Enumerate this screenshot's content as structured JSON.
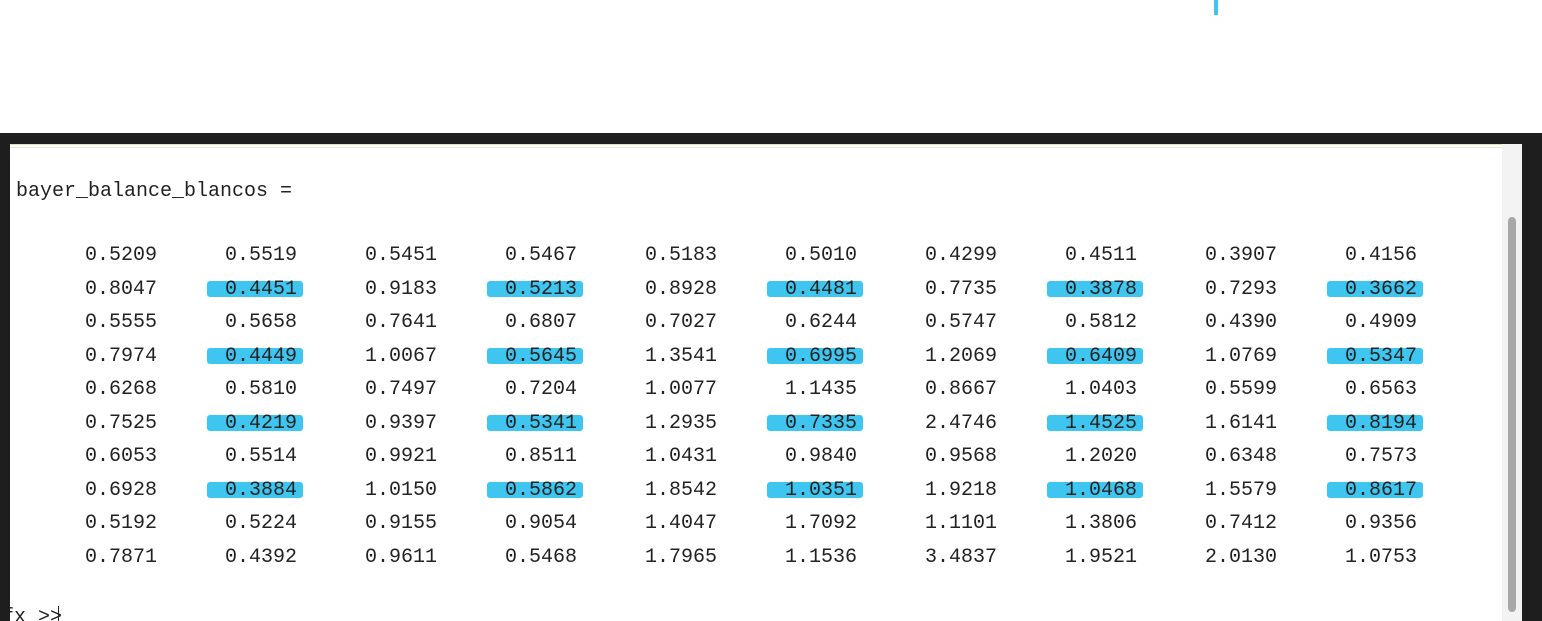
{
  "console": {
    "variable_line": "bayer_balance_blancos =",
    "prompt": "fx >>"
  },
  "matrix": {
    "rows": [
      [
        "0.5209",
        "0.5519",
        "0.5451",
        "0.5467",
        "0.5183",
        "0.5010",
        "0.4299",
        "0.4511",
        "0.3907",
        "0.4156"
      ],
      [
        "0.8047",
        "0.4451",
        "0.9183",
        "0.5213",
        "0.8928",
        "0.4481",
        "0.7735",
        "0.3878",
        "0.7293",
        "0.3662"
      ],
      [
        "0.5555",
        "0.5658",
        "0.7641",
        "0.6807",
        "0.7027",
        "0.6244",
        "0.5747",
        "0.5812",
        "0.4390",
        "0.4909"
      ],
      [
        "0.7974",
        "0.4449",
        "1.0067",
        "0.5645",
        "1.3541",
        "0.6995",
        "1.2069",
        "0.6409",
        "1.0769",
        "0.5347"
      ],
      [
        "0.6268",
        "0.5810",
        "0.7497",
        "0.7204",
        "1.0077",
        "1.1435",
        "0.8667",
        "1.0403",
        "0.5599",
        "0.6563"
      ],
      [
        "0.7525",
        "0.4219",
        "0.9397",
        "0.5341",
        "1.2935",
        "0.7335",
        "2.4746",
        "1.4525",
        "1.6141",
        "0.8194"
      ],
      [
        "0.6053",
        "0.5514",
        "0.9921",
        "0.8511",
        "1.0431",
        "0.9840",
        "0.9568",
        "1.2020",
        "0.6348",
        "0.7573"
      ],
      [
        "0.6928",
        "0.3884",
        "1.0150",
        "0.5862",
        "1.8542",
        "1.0351",
        "1.9218",
        "1.0468",
        "1.5579",
        "0.8617"
      ],
      [
        "0.5192",
        "0.5224",
        "0.9155",
        "0.9054",
        "1.4047",
        "1.7092",
        "1.1101",
        "1.3806",
        "0.7412",
        "0.9356"
      ],
      [
        "0.7871",
        "0.4392",
        "0.9611",
        "0.5468",
        "1.7965",
        "1.1536",
        "3.4837",
        "1.9521",
        "2.0130",
        "1.0753"
      ]
    ],
    "highlighted_rows": [
      1,
      3,
      5,
      7
    ],
    "highlighted_cols": [
      1,
      3,
      5,
      7,
      9
    ],
    "highlight_color": "#3ec6f0"
  }
}
